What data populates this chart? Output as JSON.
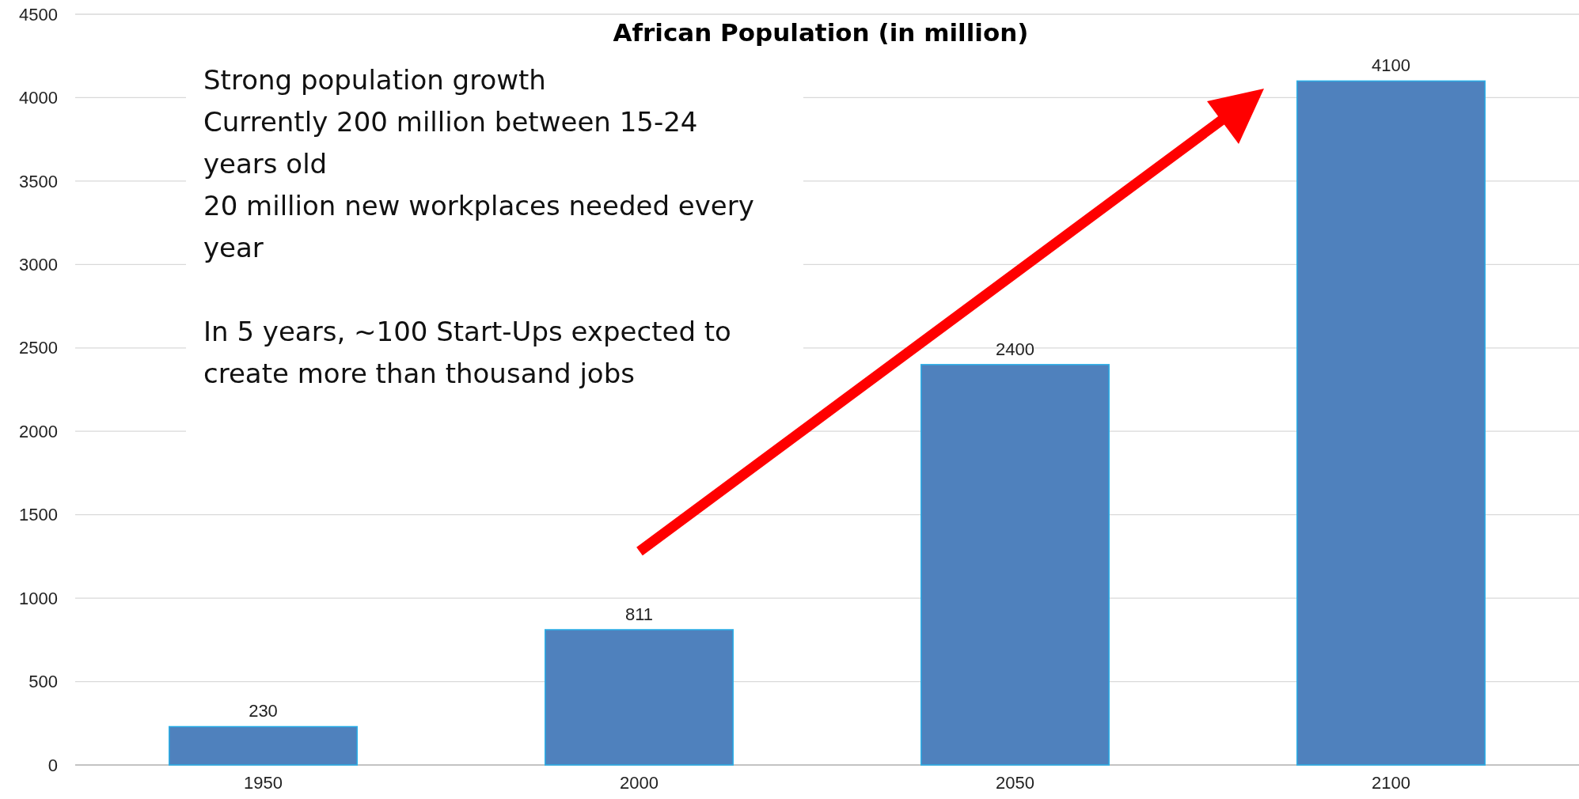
{
  "chart_data": {
    "type": "bar",
    "title": "African Population (in million)",
    "categories": [
      "1950",
      "2000",
      "2050",
      "2100"
    ],
    "values": [
      230,
      811,
      2400,
      4100
    ],
    "color": "#4f81bd",
    "ylim": [
      0,
      4500
    ],
    "yticks": [
      0,
      500,
      1000,
      1500,
      2000,
      2500,
      3000,
      3500,
      4000,
      4500
    ],
    "grid": "y",
    "data_labels": true,
    "annotations": [
      "Strong population growth",
      "Currently 200 million between 15-24 years old",
      "20 million new workplaces needed every year",
      "In 5 years, ~100 Start-Ups expected to create more than thousand jobs"
    ]
  }
}
